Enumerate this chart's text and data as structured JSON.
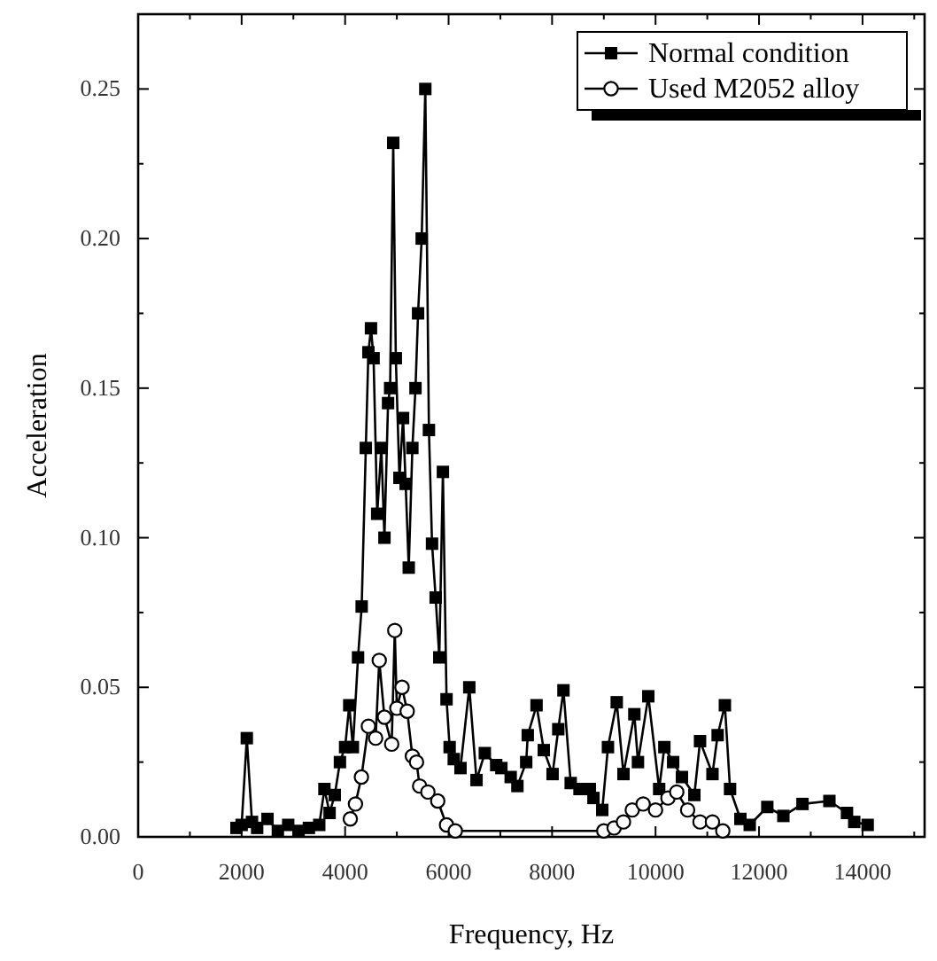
{
  "chart_data": {
    "type": "line",
    "xlabel": "Frequency, Hz",
    "ylabel": "Acceleration",
    "xlim": [
      0,
      15200
    ],
    "ylim": [
      0,
      0.275
    ],
    "xticks": [
      0,
      {
        "value": 1000,
        "label": null
      },
      2000,
      {
        "value": 3000,
        "label": null
      },
      4000,
      {
        "value": 5000,
        "label": null
      },
      6000,
      {
        "value": 7000,
        "label": null
      },
      8000,
      {
        "value": 9000,
        "label": null
      },
      10000,
      {
        "value": 11000,
        "label": null
      },
      12000,
      {
        "value": 13000,
        "label": null
      },
      14000,
      {
        "value": 15000,
        "label": null
      }
    ],
    "yticks": [
      {
        "value": 0,
        "label": "0.00"
      },
      {
        "value": 0.025,
        "label": null
      },
      {
        "value": 0.05,
        "label": "0.05"
      },
      {
        "value": 0.075,
        "label": null
      },
      {
        "value": 0.1,
        "label": "0.10"
      },
      {
        "value": 0.125,
        "label": null
      },
      {
        "value": 0.15,
        "label": "0.15"
      },
      {
        "value": 0.175,
        "label": null
      },
      {
        "value": 0.2,
        "label": "0.20"
      },
      {
        "value": 0.225,
        "label": null
      },
      {
        "value": 0.25,
        "label": "0.25"
      }
    ],
    "legend": "top right",
    "grid": false,
    "series": [
      {
        "name": "Normal condition",
        "color": "#000000",
        "marker": "square",
        "x": [
          1900,
          2000,
          2100,
          2200,
          2300,
          2500,
          2700,
          2900,
          3100,
          3300,
          3500,
          3600,
          3700,
          3800,
          3900,
          4000,
          4080,
          4150,
          4250,
          4320,
          4400,
          4450,
          4500,
          4550,
          4620,
          4700,
          4760,
          4830,
          4870,
          4930,
          4980,
          5050,
          5120,
          5170,
          5230,
          5300,
          5360,
          5410,
          5480,
          5550,
          5620,
          5680,
          5750,
          5820,
          5890,
          5960,
          6020,
          6100,
          6230,
          6400,
          6540,
          6700,
          6920,
          7020,
          7200,
          7330,
          7500,
          7530,
          7700,
          7840,
          8010,
          8120,
          8220,
          8360,
          8530,
          8730,
          8800,
          8970,
          9080,
          9250,
          9380,
          9590,
          9660,
          9860,
          10070,
          10170,
          10340,
          10510,
          10750,
          10860,
          11100,
          11200,
          11340,
          11440,
          11640,
          11820,
          12160,
          12470,
          12840,
          13360,
          13700,
          13840,
          14100
        ],
        "values": [
          0.003,
          0.004,
          0.033,
          0.005,
          0.003,
          0.006,
          0.002,
          0.004,
          0.002,
          0.003,
          0.004,
          0.016,
          0.008,
          0.014,
          0.025,
          0.03,
          0.044,
          0.03,
          0.06,
          0.077,
          0.13,
          0.162,
          0.17,
          0.16,
          0.108,
          0.13,
          0.1,
          0.145,
          0.15,
          0.232,
          0.16,
          0.12,
          0.14,
          0.118,
          0.09,
          0.13,
          0.15,
          0.175,
          0.2,
          0.25,
          0.136,
          0.098,
          0.08,
          0.06,
          0.122,
          0.046,
          0.03,
          0.026,
          0.023,
          0.05,
          0.019,
          0.028,
          0.024,
          0.023,
          0.02,
          0.017,
          0.025,
          0.034,
          0.044,
          0.029,
          0.021,
          0.036,
          0.049,
          0.018,
          0.016,
          0.016,
          0.013,
          0.009,
          0.03,
          0.045,
          0.021,
          0.041,
          0.025,
          0.047,
          0.016,
          0.03,
          0.025,
          0.02,
          0.014,
          0.032,
          0.021,
          0.034,
          0.044,
          0.016,
          0.006,
          0.004,
          0.01,
          0.007,
          0.011,
          0.012,
          0.008,
          0.005,
          0.004
        ]
      },
      {
        "name": "Used M2052 alloy",
        "color": "#000000",
        "marker": "circle",
        "x": [
          4100,
          4200,
          4315,
          4450,
          4590,
          4660,
          4760,
          4900,
          4960,
          5000,
          5100,
          5200,
          5300,
          5380,
          5440,
          5600,
          5790,
          5960,
          6130,
          9000,
          9200,
          9380,
          9550,
          9760,
          10000,
          10240,
          10410,
          10620,
          10860,
          11100,
          11300
        ],
        "values": [
          0.006,
          0.011,
          0.02,
          0.037,
          0.033,
          0.059,
          0.04,
          0.031,
          0.069,
          0.043,
          0.05,
          0.042,
          0.027,
          0.025,
          0.017,
          0.015,
          0.012,
          0.004,
          0.002,
          0.002,
          0.003,
          0.005,
          0.009,
          0.011,
          0.009,
          0.013,
          0.015,
          0.009,
          0.005,
          0.005,
          0.002
        ]
      }
    ]
  }
}
